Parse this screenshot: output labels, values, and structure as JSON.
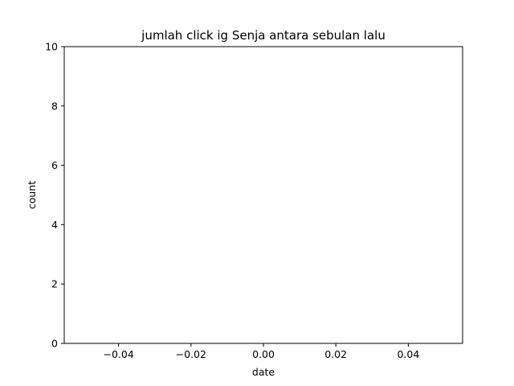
{
  "chart_data": {
    "type": "line",
    "title": "jumlah click ig Senja antara sebulan lalu",
    "xlabel": "date",
    "ylabel": "count",
    "xlim": [
      -0.055,
      0.055
    ],
    "ylim": [
      0,
      10
    ],
    "x_ticks": [
      -0.04,
      -0.02,
      0.0,
      0.02,
      0.04
    ],
    "x_tick_labels": [
      "−0.04",
      "−0.02",
      "0.00",
      "0.02",
      "0.04"
    ],
    "y_ticks": [
      0,
      2,
      4,
      6,
      8,
      10
    ],
    "y_tick_labels": [
      "0",
      "2",
      "4",
      "6",
      "8",
      "10"
    ],
    "series": [
      {
        "x": [],
        "y": []
      }
    ],
    "grid": false,
    "legend": "none"
  }
}
